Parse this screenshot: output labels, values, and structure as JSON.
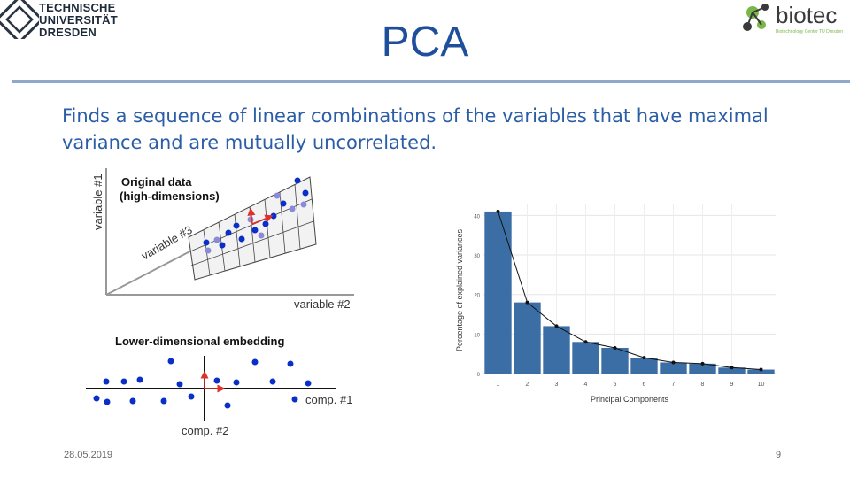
{
  "header": {
    "university_line1": "TECHNISCHE",
    "university_line2": "UNIVERSITÄT",
    "university_line3": "DRESDEN",
    "biotec_logo_text": "biotec",
    "biotec_logo_subtext": "Biotechnology Center TU Dresden"
  },
  "slide": {
    "title": "PCA",
    "body": "Finds a sequence of linear combinations of the variables that have maximal variance and are mutually uncorrelated."
  },
  "figure_left": {
    "top_title_line1": "Original data",
    "top_title_line2": "(high-dimensions)",
    "axis_y": "variable #1",
    "axis_x": "variable #2",
    "axis_diag": "variable #3",
    "bottom_title": "Lower-dimensional embedding",
    "comp1": "comp. #1",
    "comp2": "comp. #2"
  },
  "chart_data": {
    "type": "bar",
    "categories": [
      "1",
      "2",
      "3",
      "4",
      "5",
      "6",
      "7",
      "8",
      "9",
      "10"
    ],
    "values": [
      41,
      18,
      12,
      8,
      6.5,
      4,
      2.8,
      2.5,
      1.5,
      1
    ],
    "line_values": [
      41,
      18,
      12,
      8,
      6.5,
      4,
      2.8,
      2.5,
      1.5,
      1
    ],
    "xlabel": "Principal Components",
    "ylabel": "Percentage of explained variances",
    "ylim": [
      0,
      43
    ],
    "yticks": [
      "0",
      "10",
      "20",
      "30",
      "40"
    ],
    "bar_color": "#3b6ea5",
    "grid": true
  },
  "footer": {
    "date": "28.05.2019",
    "page": "9"
  }
}
